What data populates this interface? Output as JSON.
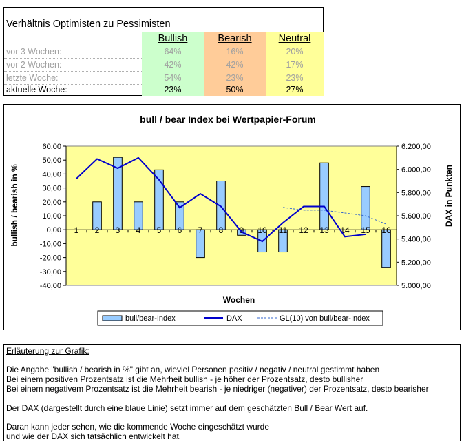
{
  "table": {
    "title": "Verhältnis Optimisten zu Pessimisten",
    "headers": [
      "Bullish",
      "Bearish",
      "Neutral"
    ],
    "rows": [
      {
        "label": "vor 3 Wochen:",
        "bullish": "64%",
        "bearish": "16%",
        "neutral": "20%"
      },
      {
        "label": "vor 2 Wochen:",
        "bullish": "42%",
        "bearish": "42%",
        "neutral": "17%"
      },
      {
        "label": "letzte Woche:",
        "bullish": "54%",
        "bearish": "23%",
        "neutral": "23%"
      },
      {
        "label": "aktuelle Woche:",
        "bullish": "23%",
        "bearish": "50%",
        "neutral": "27%"
      }
    ],
    "colors": {
      "bullish": "#ccffcc",
      "bearish": "#ffcc99",
      "neutral": "#ffff99"
    }
  },
  "chart_data": {
    "type": "bar",
    "title": "bull / bear Index bei Wertpapier-Forum",
    "xlabel": "Wochen",
    "ylabel": "bullish / bearish in %",
    "y2label": "DAX in Punkten",
    "categories": [
      "1",
      "2",
      "3",
      "4",
      "5",
      "6",
      "7",
      "8",
      "9",
      "10",
      "11",
      "12",
      "13",
      "14",
      "15",
      "16"
    ],
    "ylim": [
      -40,
      60
    ],
    "y_ticks": [
      "60,00",
      "50,00",
      "40,00",
      "30,00",
      "20,00",
      "10,00",
      "0,00",
      "-10,00",
      "-20,00",
      "-30,00",
      "-40,00"
    ],
    "y2lim": [
      5000,
      6200
    ],
    "y2_ticks": [
      "6.200,00",
      "6.000,00",
      "5.800,00",
      "5.600,00",
      "5.400,00",
      "5.200,00",
      "5.000,00"
    ],
    "series": [
      {
        "name": "bull/bear-Index",
        "kind": "bar",
        "axis": "left",
        "color": "#99ccff",
        "values": [
          null,
          20,
          52,
          20,
          43,
          20,
          -20,
          35,
          -4,
          -16,
          -16,
          null,
          48,
          null,
          31,
          -27
        ]
      },
      {
        "name": "DAX",
        "kind": "line",
        "axis": "right",
        "color": "#0000cc",
        "values": [
          5920,
          6090,
          6010,
          6100,
          5910,
          5670,
          5790,
          5680,
          5460,
          5380,
          5540,
          5680,
          5680,
          5420,
          5440,
          null
        ]
      },
      {
        "name": "GL(10) von bull/bear-Index",
        "kind": "dashed",
        "axis": "left",
        "color": "#3366cc",
        "values": [
          null,
          null,
          null,
          null,
          null,
          null,
          null,
          null,
          null,
          null,
          16,
          14,
          14,
          12,
          10,
          4
        ]
      }
    ],
    "legend": "bottom",
    "plot_bg": "#ffff99",
    "grid": false
  },
  "explanation": {
    "title": "Erläuterung zur Grafik:",
    "lines": [
      "Die Angabe \"bullish / bearish in %\" gibt an, wieviel Personen positiv / negativ / neutral gestimmt haben",
      "Bei einem positiven Prozentsatz ist die Mehrheit bullish - je höher der Prozentsatz, desto bullisher",
      "Bei einem negativem Prozentsatz ist die Mehrheit bearish - je niedriger (negativer) der Prozentsatz, desto bearisher",
      "Der DAX (dargestellt durch eine blaue Linie) setzt immer auf dem geschätzten Bull / Bear Wert auf.",
      "Daran kann jeder sehen, wie die kommende Woche eingeschätzt wurde",
      "und wie der DAX sich tatsächlich entwickelt hat."
    ]
  }
}
